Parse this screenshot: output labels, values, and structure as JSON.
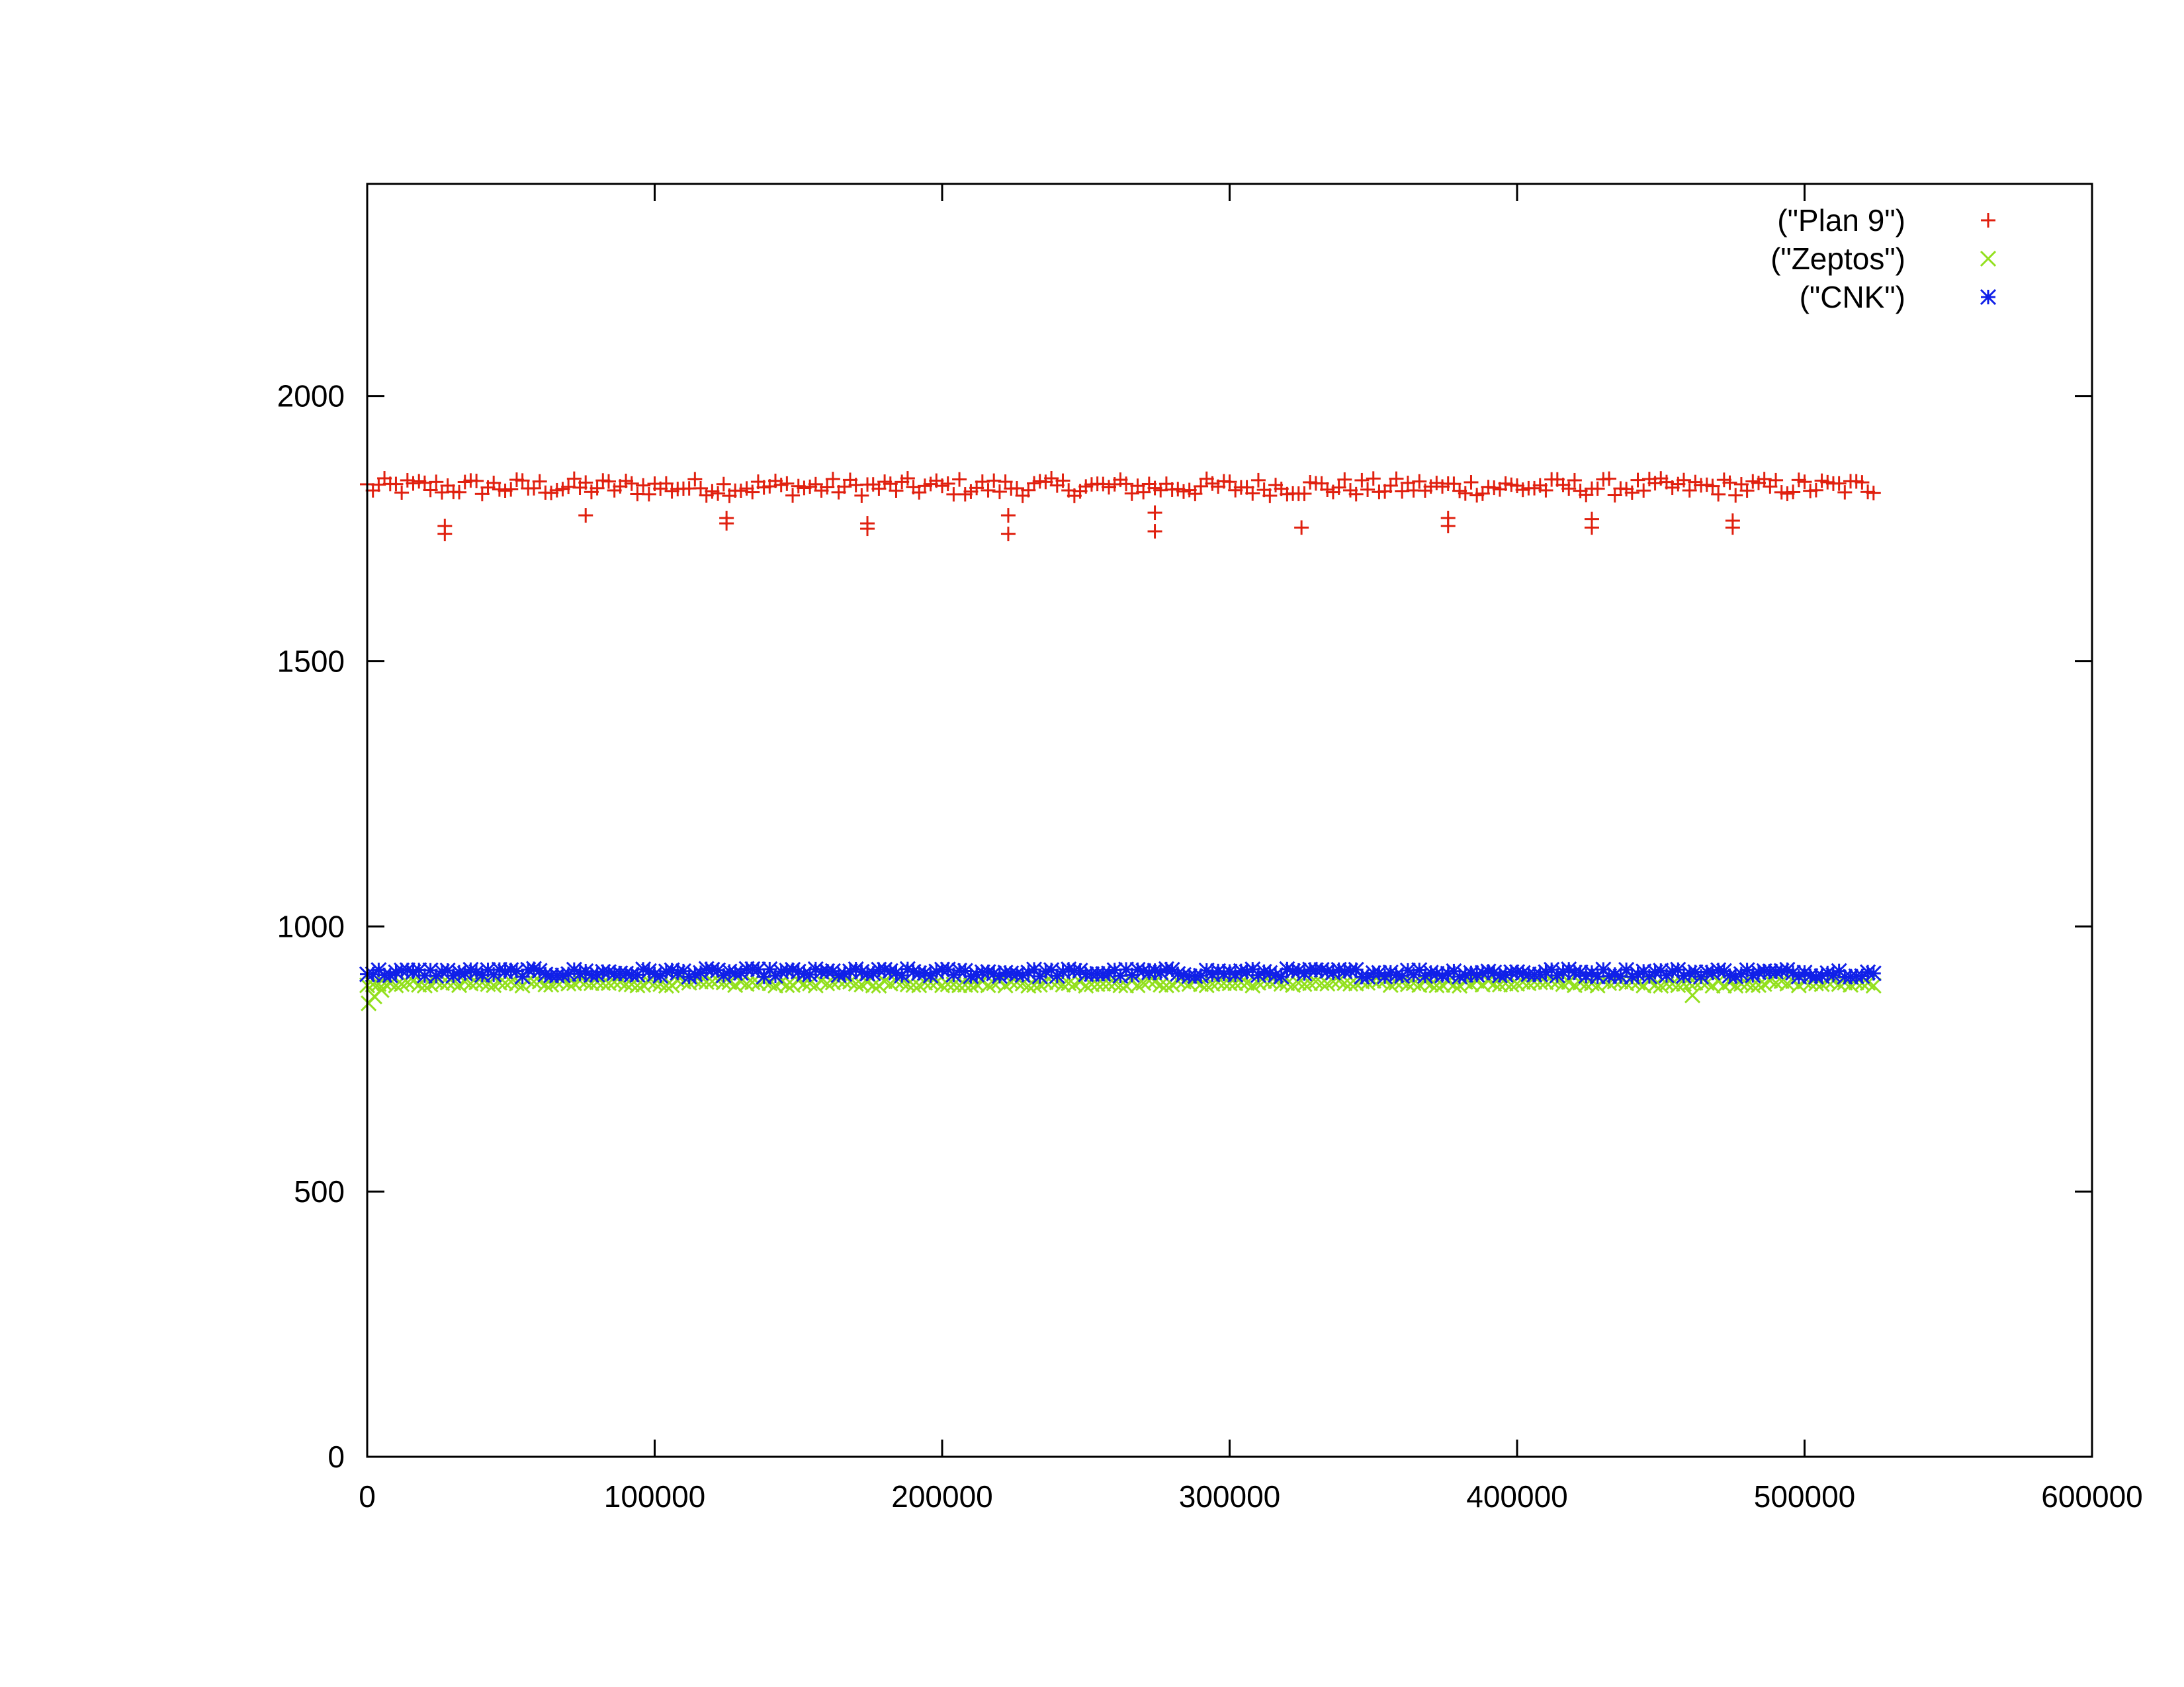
{
  "chart_data": {
    "type": "scatter",
    "title": "",
    "xlabel": "",
    "ylabel": "",
    "xlim": [
      0,
      600000
    ],
    "ylim": [
      0,
      2400
    ],
    "xticks": [
      0,
      100000,
      200000,
      300000,
      400000,
      500000,
      600000
    ],
    "xtick_labels": [
      "0",
      "100000",
      "200000",
      "300000",
      "400000",
      "500000",
      "600000"
    ],
    "yticks": [
      0,
      500,
      1000,
      1500,
      2000
    ],
    "ytick_labels": [
      "0",
      "500",
      "1000",
      "1500",
      "2000"
    ],
    "grid": false,
    "legend_position": "top-right",
    "series": [
      {
        "name": "(\"Plan 9\")",
        "marker": "plus-icon",
        "color": "#e0200f",
        "x_start": 0,
        "x_end": 524000,
        "typical_y": 1825,
        "y_band": [
          1812,
          1845
        ],
        "outliers": [
          {
            "x": 27000,
            "y": 1740
          },
          {
            "x": 27000,
            "y": 1755
          },
          {
            "x": 76000,
            "y": 1775
          },
          {
            "x": 125000,
            "y": 1760
          },
          {
            "x": 125000,
            "y": 1770
          },
          {
            "x": 174000,
            "y": 1750
          },
          {
            "x": 174000,
            "y": 1760
          },
          {
            "x": 223000,
            "y": 1740
          },
          {
            "x": 223000,
            "y": 1775
          },
          {
            "x": 274000,
            "y": 1745
          },
          {
            "x": 274000,
            "y": 1780
          },
          {
            "x": 325000,
            "y": 1752
          },
          {
            "x": 376000,
            "y": 1755
          },
          {
            "x": 376000,
            "y": 1770
          },
          {
            "x": 426000,
            "y": 1752
          },
          {
            "x": 426000,
            "y": 1768
          },
          {
            "x": 475000,
            "y": 1752
          },
          {
            "x": 475000,
            "y": 1765
          }
        ]
      },
      {
        "name": "(\"Zeptos\")",
        "marker": "cross-icon",
        "color": "#93e01e",
        "x_start": 0,
        "x_end": 524000,
        "typical_y": 893,
        "y_band": [
          888,
          898
        ],
        "outliers": [
          {
            "x": 500,
            "y": 855
          },
          {
            "x": 2500,
            "y": 868
          },
          {
            "x": 5000,
            "y": 880
          },
          {
            "x": 461000,
            "y": 870
          }
        ]
      },
      {
        "name": "(\"CNK\")",
        "marker": "asterisk-icon",
        "color": "#1020e8",
        "x_start": 0,
        "x_end": 524000,
        "typical_y": 912,
        "y_band": [
          905,
          920
        ],
        "outliers": []
      }
    ]
  }
}
